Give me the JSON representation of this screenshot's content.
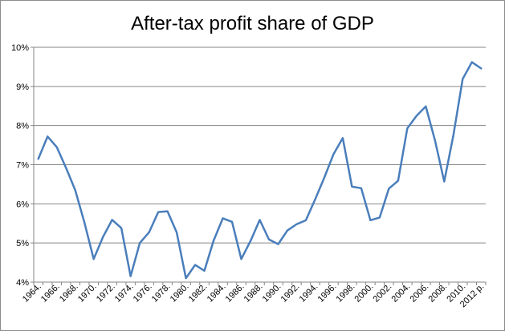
{
  "chart_data": {
    "type": "line",
    "title": "After-tax profit share of GDP",
    "xlabel": "",
    "ylabel": "",
    "ylim": [
      4,
      10
    ],
    "grid": true,
    "legend": "none",
    "y_tick_values": [
      4,
      5,
      6,
      7,
      8,
      9,
      10
    ],
    "y_tick_labels": [
      "4%",
      "5%",
      "6%",
      "7%",
      "8%",
      "9%",
      "10%"
    ],
    "x_tick_labels": [
      "1964.",
      "1966.",
      "1968.",
      "1970.",
      "1972.",
      "1974.",
      "1976.",
      "1978.",
      "1980.",
      "1982.",
      "1984.",
      "1986.",
      "1988.",
      "1990.",
      "1992.",
      "1994.",
      "1996.",
      "1998.",
      "2000.",
      "2002.",
      "2004.",
      "2006.",
      "2008.",
      "2010.",
      "2012 p."
    ],
    "line_color": "#4a7ebb",
    "series": [
      {
        "name": "After-tax profit share of GDP",
        "x": [
          1964,
          1965,
          1966,
          1967,
          1968,
          1969,
          1970,
          1971,
          1972,
          1973,
          1974,
          1975,
          1976,
          1977,
          1978,
          1979,
          1980,
          1981,
          1982,
          1983,
          1984,
          1985,
          1986,
          1987,
          1988,
          1989,
          1990,
          1991,
          1992,
          1993,
          1994,
          1995,
          1996,
          1997,
          1998,
          1999,
          2000,
          2001,
          2002,
          2003,
          2004,
          2005,
          2006,
          2007,
          2008,
          2009,
          2010,
          2011,
          2012
        ],
        "values": [
          7.15,
          7.72,
          7.45,
          6.92,
          6.35,
          5.52,
          4.59,
          5.15,
          5.59,
          5.38,
          4.15,
          5.0,
          5.27,
          5.79,
          5.81,
          5.27,
          4.1,
          4.44,
          4.29,
          5.06,
          5.63,
          5.54,
          4.59,
          5.05,
          5.59,
          5.09,
          4.97,
          5.32,
          5.48,
          5.58,
          6.11,
          6.67,
          7.27,
          7.68,
          6.44,
          6.4,
          5.58,
          5.65,
          6.39,
          6.59,
          7.93,
          8.25,
          8.49,
          7.62,
          6.57,
          7.76,
          9.19,
          9.62,
          9.46
        ]
      }
    ]
  }
}
